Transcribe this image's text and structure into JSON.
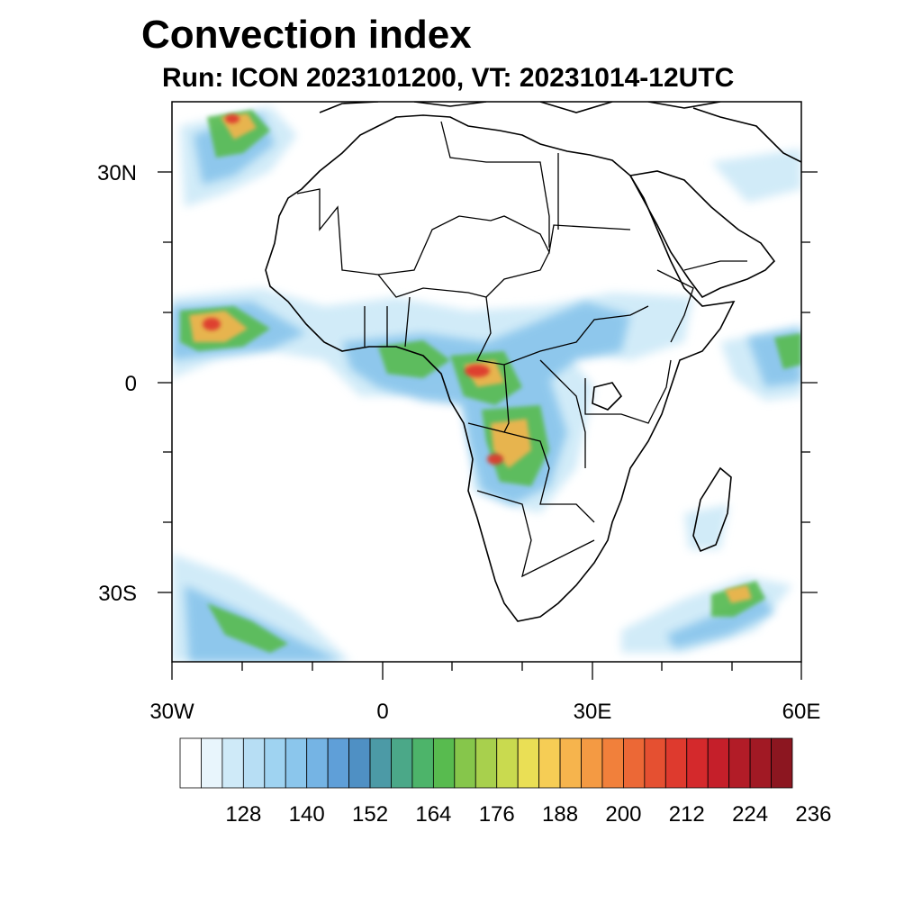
{
  "title": "Convection index",
  "subtitle": "Run: ICON 2023101200,  VT: 20231014-12UTC",
  "map": {
    "lat_labels": [
      "30N",
      "0",
      "30S"
    ],
    "lon_labels": [
      "30W",
      "0",
      "30E",
      "60E"
    ]
  },
  "colorbar": {
    "colors": [
      "#ffffff",
      "#e8f5fc",
      "#cfeaf8",
      "#b7def4",
      "#9fd3f1",
      "#8bc6ec",
      "#75b4e4",
      "#5f9fd8",
      "#4f90c4",
      "#4c9aa6",
      "#4ba888",
      "#4db46a",
      "#58bb4f",
      "#86c64b",
      "#a8d04d",
      "#c9da4f",
      "#eadf55",
      "#f6cd55",
      "#f6b44d",
      "#f49a43",
      "#f1803b",
      "#ec6836",
      "#e55031",
      "#de3a2e",
      "#d4292c",
      "#c51f2a",
      "#b21c27",
      "#a11924",
      "#8c1620"
    ],
    "tick_labels": [
      "128",
      "140",
      "152",
      "164",
      "176",
      "188",
      "200",
      "212",
      "224",
      "236"
    ]
  }
}
